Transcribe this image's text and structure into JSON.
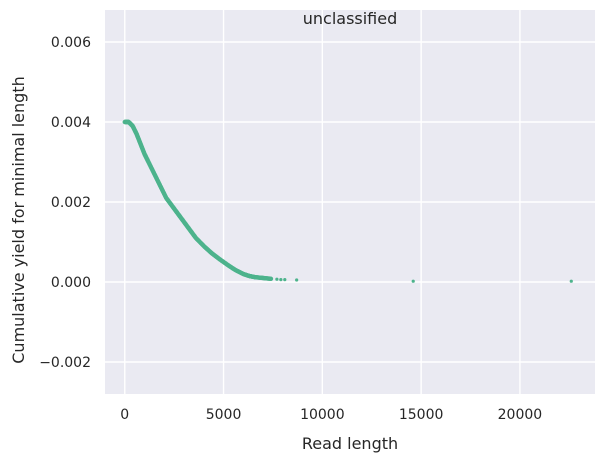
{
  "chart_data": {
    "type": "scatter",
    "title": "unclassified",
    "xlabel": "Read length",
    "ylabel": "Cumulative yield for minimal length",
    "xlim": [
      -1000,
      23800
    ],
    "ylim": [
      -0.0028,
      0.0068
    ],
    "xticks": [
      0,
      5000,
      10000,
      15000,
      20000
    ],
    "xtick_labels": [
      "0",
      "5000",
      "10000",
      "15000",
      "20000"
    ],
    "yticks": [
      -0.002,
      0.0,
      0.002,
      0.004,
      0.006
    ],
    "ytick_labels": [
      "−0.002",
      "0.000",
      "0.002",
      "0.004",
      "0.006"
    ],
    "grid": true,
    "style": "seaborn darkgrid",
    "series": [
      {
        "color": "#4db38c",
        "curve": {
          "x": [
            0,
            200,
            400,
            600,
            800,
            1000,
            1200,
            1500,
            1800,
            2100,
            2400,
            2700,
            3000,
            3300,
            3600,
            4000,
            4400,
            4800,
            5200,
            5600,
            6000,
            6300,
            6600,
            7000,
            7400
          ],
          "y": [
            0.004,
            0.004,
            0.0039,
            0.0037,
            0.00345,
            0.0032,
            0.003,
            0.0027,
            0.0024,
            0.0021,
            0.0019,
            0.0017,
            0.0015,
            0.0013,
            0.0011,
            0.0009,
            0.00072,
            0.00057,
            0.00043,
            0.0003,
            0.0002,
            0.00015,
            0.00012,
            0.0001,
            8e-05
          ]
        },
        "x": [
          7700,
          7900,
          8100,
          8700,
          14600,
          22600
        ],
        "y": [
          7e-05,
          6e-05,
          6e-05,
          5e-05,
          2e-05,
          2e-05
        ]
      }
    ]
  }
}
